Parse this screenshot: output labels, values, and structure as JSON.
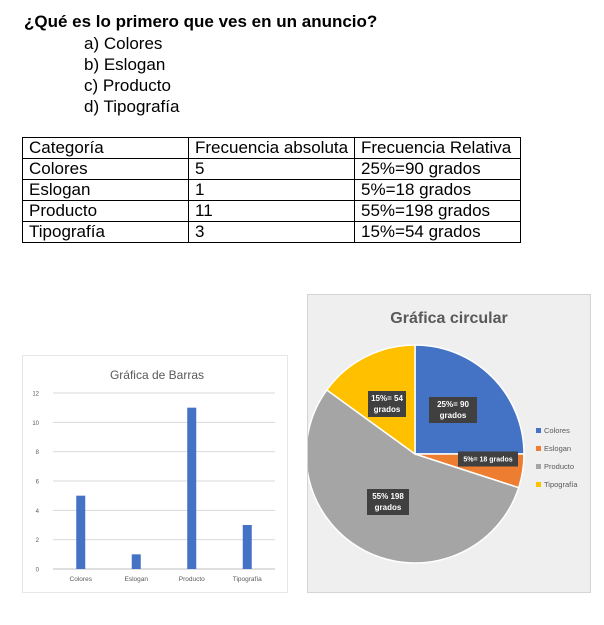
{
  "question": "¿Qué es lo primero que ves en un anuncio?",
  "options": [
    "a) Colores",
    "b) Eslogan",
    "c) Producto",
    "d) Tipografía"
  ],
  "table": {
    "headers": [
      "Categoría",
      "Frecuencia absoluta",
      "Frecuencia Relativa"
    ],
    "rows": [
      [
        "Colores",
        "5",
        "25%=90 grados"
      ],
      [
        "Eslogan",
        "1",
        "5%=18 grados"
      ],
      [
        "Producto",
        "11",
        "55%=198 grados"
      ],
      [
        "Tipografía",
        "3",
        "15%=54 grados"
      ]
    ]
  },
  "chart_data": [
    {
      "type": "bar",
      "title": "Gráfica de Barras",
      "categories": [
        "Colores",
        "Eslogan",
        "Producto",
        "Tipografía"
      ],
      "values": [
        5,
        1,
        11,
        3
      ],
      "ylim": [
        0,
        12
      ],
      "yticks": [
        "0",
        "2",
        "4",
        "6",
        "8",
        "10",
        "12"
      ],
      "grid": true,
      "bar_color": "#4472c4"
    },
    {
      "type": "pie",
      "title": "Gráfica circular",
      "categories": [
        "Colores",
        "Eslogan",
        "Producto",
        "Tipografía"
      ],
      "values": [
        25,
        5,
        55,
        15
      ],
      "labels": [
        [
          "25%= 90",
          "grados"
        ],
        [
          "5%= 18 grados"
        ],
        [
          "55% 198",
          "grados"
        ],
        [
          "15%= 54",
          "grados"
        ]
      ],
      "colors": [
        "#4472c4",
        "#ed7d31",
        "#a5a5a5",
        "#ffc000"
      ],
      "legend": "right"
    }
  ]
}
